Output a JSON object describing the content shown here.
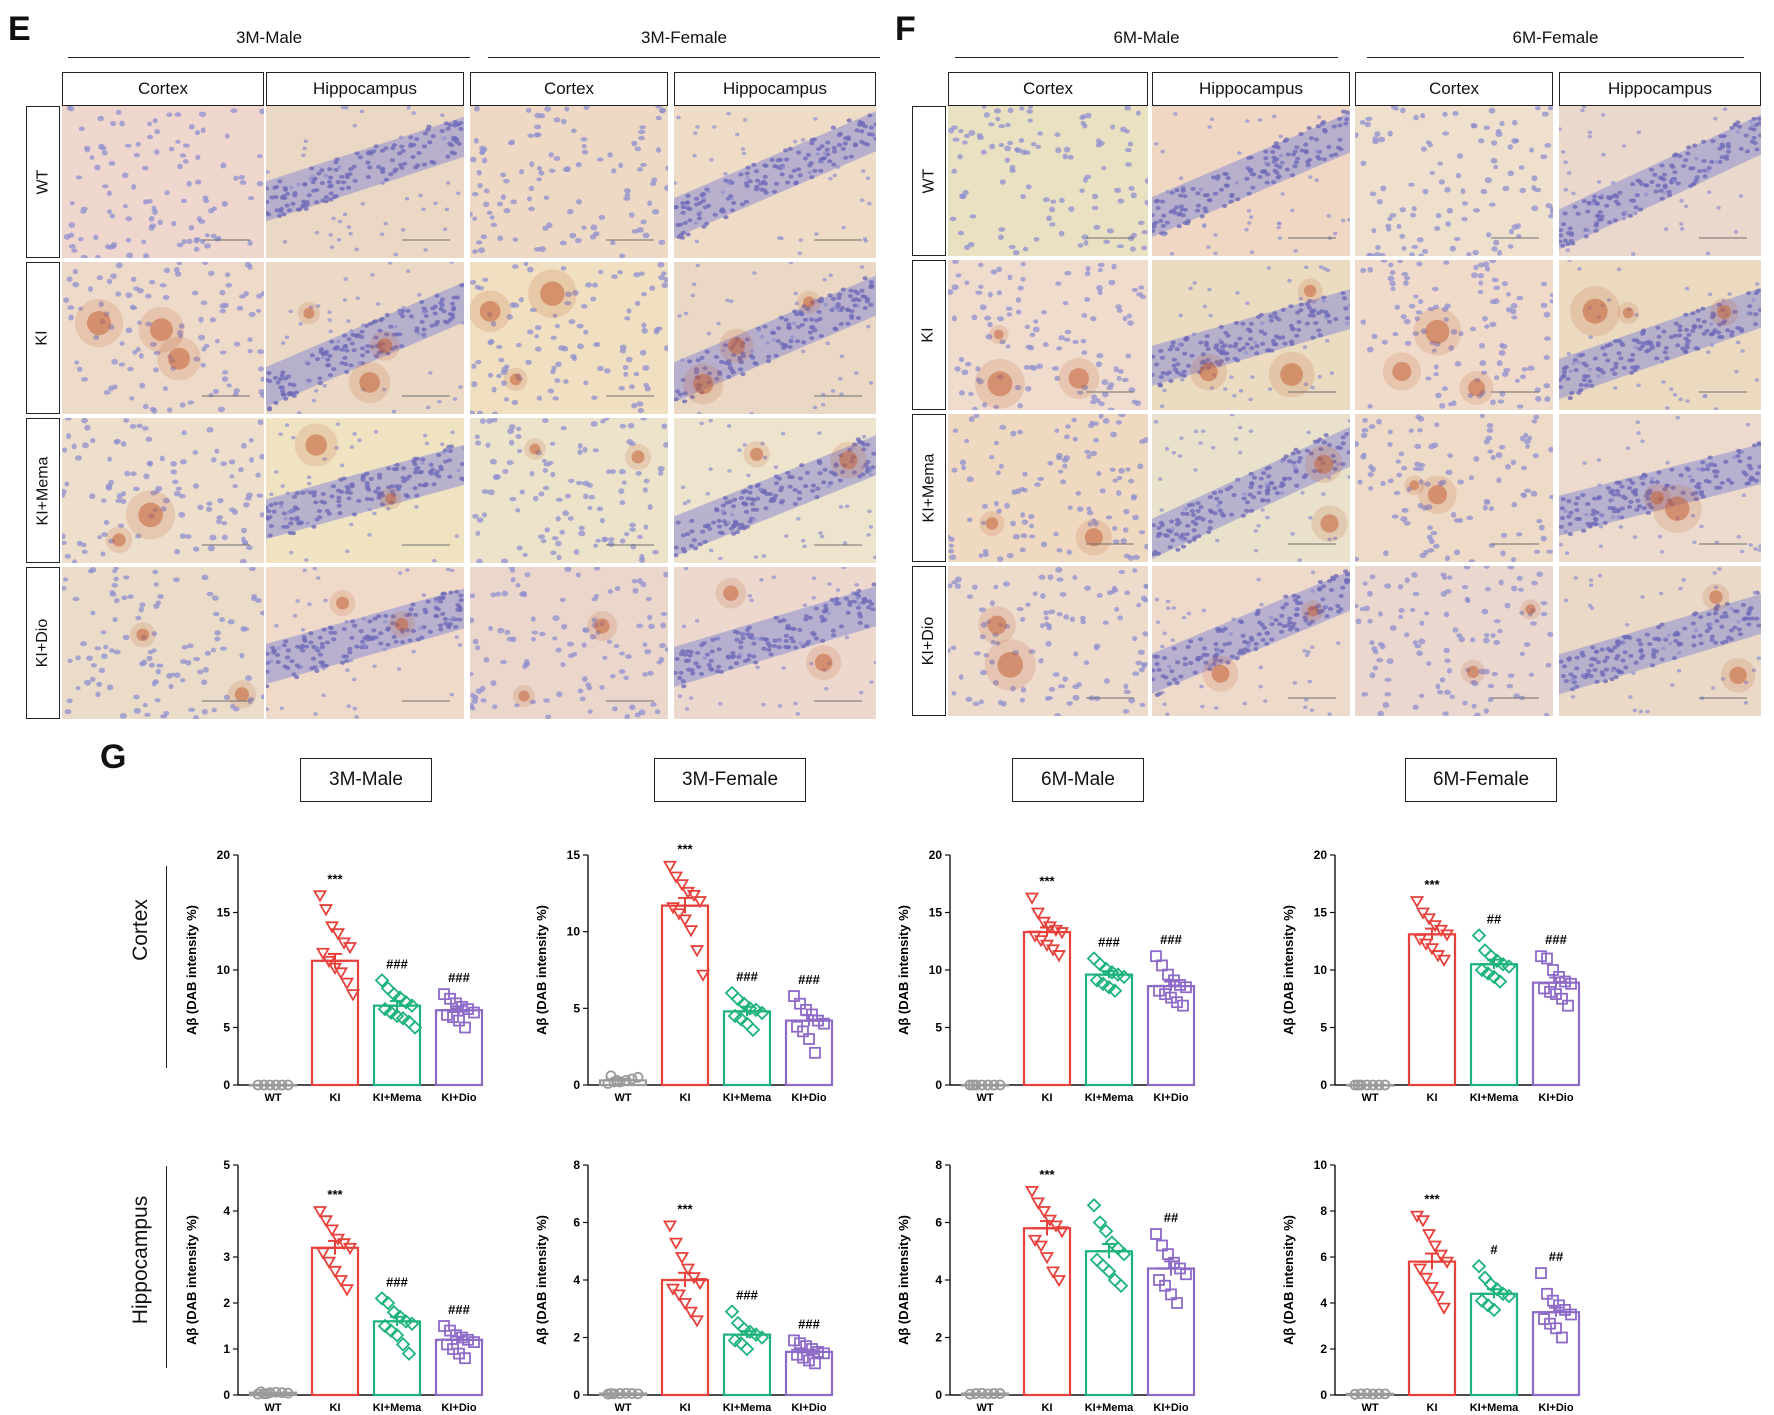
{
  "panel_E": {
    "letter": "E",
    "groups": [
      "3M-Male",
      "3M-Female"
    ],
    "columns": [
      "Cortex",
      "Hippocampus",
      "Cortex",
      "Hippocampus"
    ],
    "rows": [
      "WT",
      "KI",
      "KI+Mema",
      "KI+Dio"
    ]
  },
  "panel_F": {
    "letter": "F",
    "groups": [
      "6M-Male",
      "6M-Female"
    ],
    "columns": [
      "Cortex",
      "Hippocampus",
      "Cortex",
      "Hippocampus"
    ],
    "rows": [
      "WT",
      "KI",
      "KI+Mema",
      "KI+Dio"
    ]
  },
  "panel_G": {
    "letter": "G",
    "group_titles": [
      "3M-Male",
      "3M-Female",
      "6M-Male",
      "6M-Female"
    ],
    "region_labels": [
      "Cortex",
      "Hippocampus"
    ]
  },
  "colors": {
    "WT": "#9a9a9a",
    "KI": "#e8413c",
    "KI+Mema": "#1db37b",
    "KI+Dio": "#8e6ac8",
    "tissue_bg": "#ecd3bf",
    "stain_plaque": "#c4653a",
    "nuclei": "#8f8fcf"
  },
  "chart_data": [
    {
      "id": "cortex-3M-Male",
      "type": "bar",
      "title": "3M-Male",
      "region": "Cortex",
      "ylabel": "Aβ (DAB intensity %)",
      "categories": [
        "WT",
        "KI",
        "KI+Mema",
        "KI+Dio"
      ],
      "values": [
        0,
        10.8,
        6.9,
        6.5
      ],
      "sem": [
        0,
        0.6,
        0.4,
        0.35
      ],
      "ylim": [
        0,
        20
      ],
      "yticks": [
        0,
        5,
        10,
        15,
        20
      ],
      "annotations": [
        "",
        "***",
        "###",
        "###"
      ],
      "points": [
        [
          0,
          0,
          0,
          0,
          0,
          0
        ],
        [
          16.5,
          15.3,
          13.8,
          13.2,
          12.4,
          12.0,
          11.5,
          10.8,
          10.2,
          9.8,
          8.9,
          7.9
        ],
        [
          9.1,
          8.4,
          7.9,
          7.6,
          7.2,
          6.9,
          6.6,
          6.3,
          6.0,
          5.8,
          5.5,
          5.0
        ],
        [
          7.9,
          7.5,
          7.1,
          6.8,
          6.6,
          6.3,
          6.1,
          5.9,
          5.6,
          5.0
        ]
      ]
    },
    {
      "id": "cortex-3M-Female",
      "type": "bar",
      "title": "3M-Female",
      "region": "Cortex",
      "ylabel": "Aβ (DAB intensity %)",
      "categories": [
        "WT",
        "KI",
        "KI+Mema",
        "KI+Dio"
      ],
      "values": [
        0.3,
        11.7,
        4.8,
        4.2
      ],
      "sem": [
        0.1,
        0.5,
        0.3,
        0.35
      ],
      "ylim": [
        0,
        15
      ],
      "yticks": [
        0,
        5,
        10,
        15
      ],
      "annotations": [
        "",
        "***",
        "###",
        "###"
      ],
      "points": [
        [
          0.1,
          0.2,
          0.2,
          0.3,
          0.4,
          0.5,
          0.6,
          0.3
        ],
        [
          14.3,
          13.6,
          13.1,
          12.6,
          12.4,
          12.0,
          11.6,
          11.2,
          10.8,
          10.1,
          8.8,
          7.2
        ],
        [
          6.0,
          5.6,
          5.3,
          5.0,
          4.9,
          4.7,
          4.5,
          4.3,
          4.0,
          3.6
        ],
        [
          5.8,
          5.3,
          4.9,
          4.6,
          4.2,
          4.0,
          3.8,
          3.5,
          3.0,
          2.1
        ]
      ]
    },
    {
      "id": "cortex-6M-Male",
      "type": "bar",
      "title": "6M-Male",
      "region": "Cortex",
      "ylabel": "Aβ (DAB intensity %)",
      "categories": [
        "WT",
        "KI",
        "KI+Mema",
        "KI+Dio"
      ],
      "values": [
        0,
        13.3,
        9.6,
        8.6
      ],
      "sem": [
        0,
        0.4,
        0.3,
        0.4
      ],
      "ylim": [
        0,
        20
      ],
      "yticks": [
        0,
        5,
        10,
        15,
        20
      ],
      "annotations": [
        "",
        "***",
        "###",
        "###"
      ],
      "points": [
        [
          0,
          0,
          0,
          0,
          0,
          0,
          0
        ],
        [
          16.3,
          15.0,
          14.2,
          13.8,
          13.5,
          13.3,
          13.0,
          12.6,
          12.2,
          11.8,
          11.3
        ],
        [
          11.0,
          10.5,
          10.1,
          9.8,
          9.6,
          9.4,
          9.1,
          8.8,
          8.5,
          8.2
        ],
        [
          11.2,
          10.4,
          9.6,
          9.1,
          8.7,
          8.5,
          8.2,
          7.9,
          7.6,
          7.2,
          6.9
        ]
      ]
    },
    {
      "id": "cortex-6M-Female",
      "type": "bar",
      "title": "6M-Female",
      "region": "Cortex",
      "ylabel": "Aβ (DAB intensity %)",
      "categories": [
        "WT",
        "KI",
        "KI+Mema",
        "KI+Dio"
      ],
      "values": [
        0,
        13.1,
        10.5,
        8.9
      ],
      "sem": [
        0,
        0.5,
        0.4,
        0.45
      ],
      "ylim": [
        0,
        20
      ],
      "yticks": [
        0,
        5,
        10,
        15,
        20
      ],
      "annotations": [
        "",
        "***",
        "##",
        "###"
      ],
      "points": [
        [
          0,
          0,
          0,
          0,
          0,
          0,
          0
        ],
        [
          16.0,
          15.0,
          14.5,
          13.9,
          13.5,
          13.1,
          12.7,
          12.3,
          11.9,
          11.3,
          10.9
        ],
        [
          13.0,
          11.7,
          11.2,
          10.8,
          10.5,
          10.3,
          10.0,
          9.7,
          9.4,
          9.0
        ],
        [
          11.2,
          11.0,
          10.0,
          9.4,
          9.0,
          8.8,
          8.4,
          8.1,
          7.9,
          7.5,
          6.9
        ]
      ]
    },
    {
      "id": "hippo-3M-Male",
      "type": "bar",
      "title": "3M-Male",
      "region": "Hippocampus",
      "ylabel": "Aβ (DAB intensity %)",
      "categories": [
        "WT",
        "KI",
        "KI+Mema",
        "KI+Dio"
      ],
      "values": [
        0.05,
        3.2,
        1.6,
        1.2
      ],
      "sem": [
        0.01,
        0.15,
        0.1,
        0.07
      ],
      "ylim": [
        0,
        5
      ],
      "yticks": [
        0,
        1,
        2,
        3,
        4,
        5
      ],
      "annotations": [
        "",
        "***",
        "###",
        "###"
      ],
      "points": [
        [
          0.02,
          0.03,
          0.05,
          0.06,
          0.05,
          0.04,
          0.07,
          0.03
        ],
        [
          4.0,
          3.8,
          3.6,
          3.4,
          3.3,
          3.2,
          3.1,
          2.9,
          2.7,
          2.5,
          2.3
        ],
        [
          2.1,
          2.0,
          1.8,
          1.7,
          1.6,
          1.55,
          1.5,
          1.4,
          1.3,
          1.1,
          0.9
        ],
        [
          1.5,
          1.4,
          1.3,
          1.25,
          1.2,
          1.15,
          1.1,
          1.0,
          0.9,
          0.8
        ]
      ]
    },
    {
      "id": "hippo-3M-Female",
      "type": "bar",
      "title": "3M-Female",
      "region": "Hippocampus",
      "ylabel": "Aβ (DAB intensity %)",
      "categories": [
        "WT",
        "KI",
        "KI+Mema",
        "KI+Dio"
      ],
      "values": [
        0.05,
        4.0,
        2.1,
        1.5
      ],
      "sem": [
        0.01,
        0.25,
        0.12,
        0.08
      ],
      "ylim": [
        0,
        8
      ],
      "yticks": [
        0,
        2,
        4,
        6,
        8
      ],
      "annotations": [
        "",
        "***",
        "###",
        "###"
      ],
      "points": [
        [
          0.03,
          0.04,
          0.05,
          0.06,
          0.05,
          0.04,
          0.05
        ],
        [
          5.9,
          5.3,
          4.8,
          4.4,
          4.1,
          3.9,
          3.7,
          3.5,
          3.2,
          2.9,
          2.6
        ],
        [
          2.9,
          2.5,
          2.3,
          2.2,
          2.1,
          2.0,
          1.9,
          1.8,
          1.6
        ],
        [
          1.9,
          1.8,
          1.7,
          1.6,
          1.5,
          1.45,
          1.4,
          1.3,
          1.2,
          1.1
        ]
      ]
    },
    {
      "id": "hippo-6M-Male",
      "type": "bar",
      "title": "6M-Male",
      "region": "Hippocampus",
      "ylabel": "Aβ (DAB intensity %)",
      "categories": [
        "WT",
        "KI",
        "KI+Mema",
        "KI+Dio"
      ],
      "values": [
        0.05,
        5.8,
        5.0,
        4.4
      ],
      "sem": [
        0.01,
        0.25,
        0.25,
        0.25
      ],
      "ylim": [
        0,
        8
      ],
      "yticks": [
        0,
        2,
        4,
        6,
        8
      ],
      "annotations": [
        "",
        "***",
        "",
        "##"
      ],
      "points": [
        [
          0.03,
          0.05,
          0.06,
          0.04,
          0.05,
          0.05
        ],
        [
          7.1,
          6.7,
          6.4,
          6.1,
          5.9,
          5.7,
          5.4,
          5.2,
          4.8,
          4.3,
          4.0
        ],
        [
          6.6,
          6.0,
          5.7,
          5.3,
          5.1,
          4.9,
          4.7,
          4.5,
          4.3,
          4.0,
          3.8
        ],
        [
          5.6,
          5.2,
          4.9,
          4.6,
          4.4,
          4.2,
          4.0,
          3.8,
          3.5,
          3.2
        ]
      ]
    },
    {
      "id": "hippo-6M-Female",
      "type": "bar",
      "title": "6M-Female",
      "region": "Hippocampus",
      "ylabel": "Aβ (DAB intensity %)",
      "categories": [
        "WT",
        "KI",
        "KI+Mema",
        "KI+Dio"
      ],
      "values": [
        0.05,
        5.8,
        4.4,
        3.6
      ],
      "sem": [
        0.01,
        0.35,
        0.2,
        0.2
      ],
      "ylim": [
        0,
        10
      ],
      "yticks": [
        0,
        2,
        4,
        6,
        8,
        10
      ],
      "annotations": [
        "",
        "***",
        "#",
        "##"
      ],
      "points": [
        [
          0.03,
          0.05,
          0.06,
          0.04,
          0.05,
          0.05
        ],
        [
          7.8,
          7.6,
          7.0,
          6.5,
          6.1,
          5.8,
          5.5,
          5.1,
          4.7,
          4.3,
          3.8
        ],
        [
          5.6,
          5.1,
          4.8,
          4.6,
          4.4,
          4.3,
          4.1,
          3.9,
          3.7
        ],
        [
          5.3,
          4.4,
          4.1,
          3.9,
          3.7,
          3.5,
          3.3,
          3.1,
          2.9,
          2.5
        ]
      ]
    }
  ]
}
